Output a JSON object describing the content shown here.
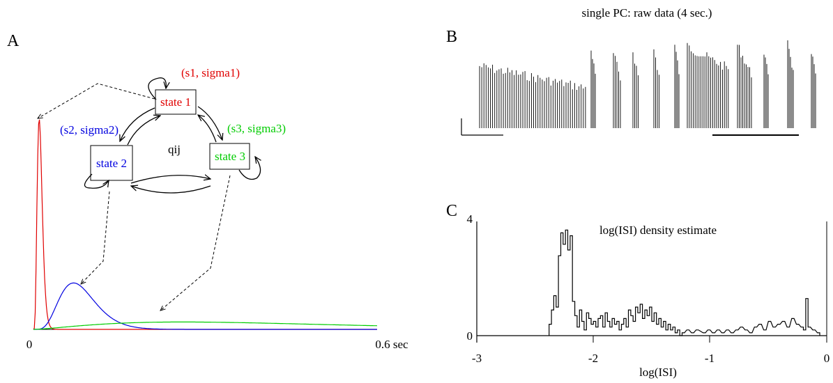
{
  "panelA": {
    "letter": "A",
    "states": [
      {
        "label": "state 1",
        "params": "(s1, sigma1)",
        "color": "#e00000"
      },
      {
        "label": "state 2",
        "params": "(s2, sigma2)",
        "color": "#0000e0"
      },
      {
        "label": "state 3",
        "params": "(s3, sigma3)",
        "color": "#00cc00"
      }
    ],
    "transition_label": "qij",
    "x_tick_start": "0",
    "x_tick_end": "0.6 sec",
    "chart_data": {
      "type": "line",
      "xlim": [
        0,
        0.6
      ],
      "xunit": "sec",
      "series": [
        {
          "name": "(s1, sigma1)",
          "color": "#e00000",
          "peak_x": 0.01,
          "peak_height": 1.0
        },
        {
          "name": "(s2, sigma2)",
          "color": "#0000e0",
          "peak_x": 0.07,
          "peak_height": 0.22
        },
        {
          "name": "(s3, sigma3)",
          "color": "#00cc00",
          "peak_x": 0.26,
          "peak_height": 0.035
        }
      ]
    }
  },
  "panelB": {
    "letter": "B",
    "title": "single PC: raw data (4 sec.)"
  },
  "panelC": {
    "letter": "C",
    "title": "log(ISI) density estimate",
    "xlabel": "log(ISI)",
    "xticks": [
      "-3",
      "-2",
      "-1",
      "0"
    ],
    "yticks": [
      "0",
      "4"
    ],
    "chart_data": {
      "type": "histogram",
      "xlim": [
        -3,
        0
      ],
      "ylim": [
        0,
        4
      ],
      "xlabel": "log(ISI)",
      "title": "log(ISI) density estimate",
      "bins": [
        {
          "x": -2.37,
          "y": 0.4
        },
        {
          "x": -2.35,
          "y": 0.9
        },
        {
          "x": -2.33,
          "y": 1.4
        },
        {
          "x": -2.31,
          "y": 1.0
        },
        {
          "x": -2.29,
          "y": 2.8
        },
        {
          "x": -2.27,
          "y": 3.6
        },
        {
          "x": -2.25,
          "y": 3.2
        },
        {
          "x": -2.23,
          "y": 3.7
        },
        {
          "x": -2.21,
          "y": 3.0
        },
        {
          "x": -2.19,
          "y": 3.5
        },
        {
          "x": -2.17,
          "y": 1.2
        },
        {
          "x": -2.15,
          "y": 0.7
        },
        {
          "x": -2.13,
          "y": 0.3
        },
        {
          "x": -2.11,
          "y": 0.9
        },
        {
          "x": -2.09,
          "y": 0.5
        },
        {
          "x": -2.07,
          "y": 0.2
        },
        {
          "x": -2.05,
          "y": 0.8
        },
        {
          "x": -2.03,
          "y": 0.6
        },
        {
          "x": -2.01,
          "y": 0.4
        },
        {
          "x": -1.99,
          "y": 0.5
        },
        {
          "x": -1.97,
          "y": 0.3
        },
        {
          "x": -1.95,
          "y": 0.6
        },
        {
          "x": -1.93,
          "y": 0.7
        },
        {
          "x": -1.91,
          "y": 0.3
        },
        {
          "x": -1.89,
          "y": 0.8
        },
        {
          "x": -1.87,
          "y": 0.5
        },
        {
          "x": -1.85,
          "y": 0.3
        },
        {
          "x": -1.83,
          "y": 0.6
        },
        {
          "x": -1.81,
          "y": 0.4
        },
        {
          "x": -1.79,
          "y": 0.5
        },
        {
          "x": -1.77,
          "y": 0.2
        },
        {
          "x": -1.75,
          "y": 0.4
        },
        {
          "x": -1.73,
          "y": 0.6
        },
        {
          "x": -1.71,
          "y": 0.3
        },
        {
          "x": -1.69,
          "y": 0.9
        },
        {
          "x": -1.67,
          "y": 0.7
        },
        {
          "x": -1.65,
          "y": 0.5
        },
        {
          "x": -1.63,
          "y": 1.0
        },
        {
          "x": -1.61,
          "y": 0.8
        },
        {
          "x": -1.59,
          "y": 1.1
        },
        {
          "x": -1.57,
          "y": 0.6
        },
        {
          "x": -1.55,
          "y": 0.9
        },
        {
          "x": -1.53,
          "y": 0.7
        },
        {
          "x": -1.51,
          "y": 1.0
        },
        {
          "x": -1.49,
          "y": 0.5
        },
        {
          "x": -1.47,
          "y": 0.8
        },
        {
          "x": -1.45,
          "y": 0.4
        },
        {
          "x": -1.43,
          "y": 0.6
        },
        {
          "x": -1.41,
          "y": 0.3
        },
        {
          "x": -1.39,
          "y": 0.5
        },
        {
          "x": -1.37,
          "y": 0.2
        },
        {
          "x": -1.35,
          "y": 0.4
        },
        {
          "x": -1.33,
          "y": 0.2
        },
        {
          "x": -1.31,
          "y": 0.3
        },
        {
          "x": -1.29,
          "y": 0.1
        },
        {
          "x": -1.27,
          "y": 0.2
        },
        {
          "x": -1.25,
          "y": 0.0
        },
        {
          "x": -1.23,
          "y": 0.1
        },
        {
          "x": -1.19,
          "y": 0.2
        },
        {
          "x": -1.15,
          "y": 0.1
        },
        {
          "x": -1.11,
          "y": 0.2
        },
        {
          "x": -1.05,
          "y": 0.1
        },
        {
          "x": -1.01,
          "y": 0.2
        },
        {
          "x": -0.97,
          "y": 0.1
        },
        {
          "x": -0.93,
          "y": 0.2
        },
        {
          "x": -0.89,
          "y": 0.1
        },
        {
          "x": -0.85,
          "y": 0.2
        },
        {
          "x": -0.81,
          "y": 0.1
        },
        {
          "x": -0.77,
          "y": 0.2
        },
        {
          "x": -0.73,
          "y": 0.3
        },
        {
          "x": -0.69,
          "y": 0.2
        },
        {
          "x": -0.65,
          "y": 0.1
        },
        {
          "x": -0.61,
          "y": 0.3
        },
        {
          "x": -0.57,
          "y": 0.4
        },
        {
          "x": -0.53,
          "y": 0.2
        },
        {
          "x": -0.49,
          "y": 0.5
        },
        {
          "x": -0.45,
          "y": 0.3
        },
        {
          "x": -0.41,
          "y": 0.4
        },
        {
          "x": -0.37,
          "y": 0.5
        },
        {
          "x": -0.33,
          "y": 0.3
        },
        {
          "x": -0.29,
          "y": 0.6
        },
        {
          "x": -0.25,
          "y": 0.4
        },
        {
          "x": -0.21,
          "y": 0.3
        },
        {
          "x": -0.19,
          "y": 0.2
        },
        {
          "x": -0.17,
          "y": 1.3
        },
        {
          "x": -0.15,
          "y": 0.3
        },
        {
          "x": -0.11,
          "y": 0.2
        },
        {
          "x": -0.07,
          "y": 0.1
        }
      ]
    }
  }
}
